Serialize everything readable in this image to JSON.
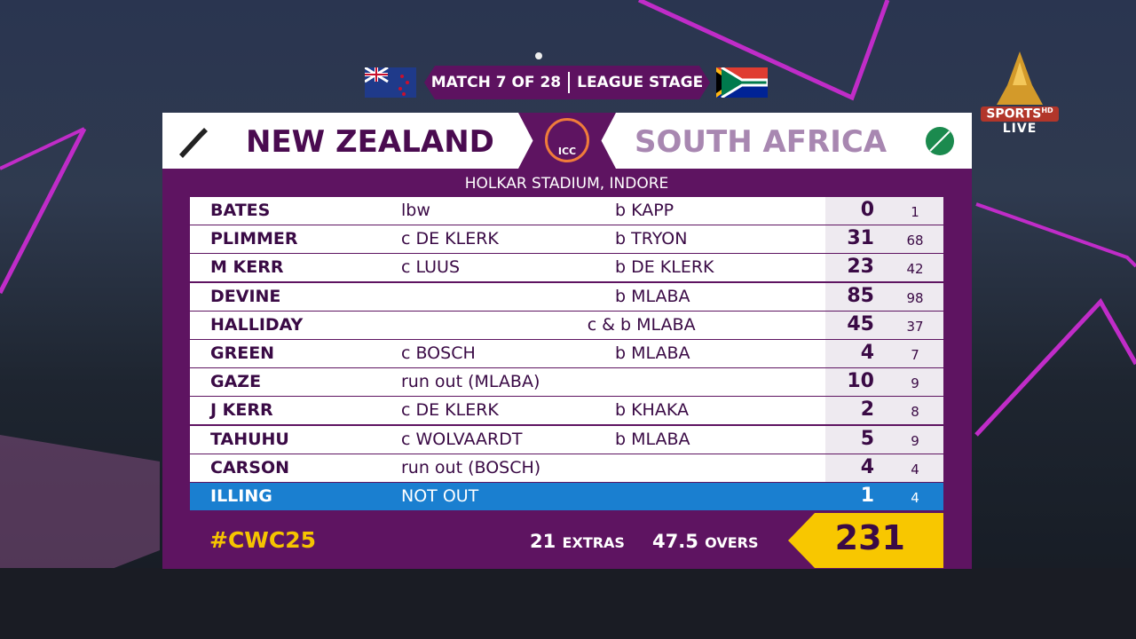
{
  "header": {
    "match": "MATCH 7 OF 28",
    "stage": "LEAGUE STAGE",
    "batting_team": "NEW ZEALAND",
    "bowling_team": "SOUTH AFRICA",
    "logo": "ICC",
    "venue": "HOLKAR STADIUM, INDORE"
  },
  "broadcaster": {
    "name": "SPORTS",
    "tag": "HD",
    "status": "LIVE"
  },
  "table": {
    "rows": [
      {
        "batter": "BATES",
        "dismissal": "lbw",
        "bowler": "b KAPP",
        "runs": "0",
        "balls": "1"
      },
      {
        "batter": "PLIMMER",
        "dismissal": "c DE KLERK",
        "bowler": "b TRYON",
        "runs": "31",
        "balls": "68"
      },
      {
        "batter": "M KERR",
        "dismissal": "c LUUS",
        "bowler": "b DE KLERK",
        "runs": "23",
        "balls": "42"
      },
      {
        "batter": "DEVINE",
        "bowler": "b MLABA",
        "runs": "85",
        "balls": "98"
      },
      {
        "batter": "HALLIDAY",
        "bowler": "c & b MLABA",
        "runs": "45",
        "balls": "37"
      },
      {
        "batter": "GREEN",
        "dismissal": "c BOSCH",
        "bowler": "b MLABA",
        "runs": "4",
        "balls": "7"
      },
      {
        "batter": "GAZE",
        "dismissal": "run out (MLABA)",
        "runs": "10",
        "balls": "9"
      },
      {
        "batter": "J KERR",
        "dismissal": "c DE KLERK",
        "bowler": "b KHAKA",
        "runs": "2",
        "balls": "8"
      },
      {
        "batter": "TAHUHU",
        "dismissal": "c WOLVAARDT",
        "bowler": "b MLABA",
        "runs": "5",
        "balls": "9"
      },
      {
        "batter": "CARSON",
        "dismissal": "run out (BOSCH)",
        "runs": "4",
        "balls": "4"
      },
      {
        "batter": "ILLING",
        "dismissal": "NOT OUT",
        "runs": "1",
        "balls": "4",
        "highlight": true
      }
    ]
  },
  "footer": {
    "hashtag": "#CWC25",
    "extras": "21",
    "extras_label": "EXTRAS",
    "overs": "47.5",
    "overs_label": "OVERS",
    "total": "231"
  }
}
